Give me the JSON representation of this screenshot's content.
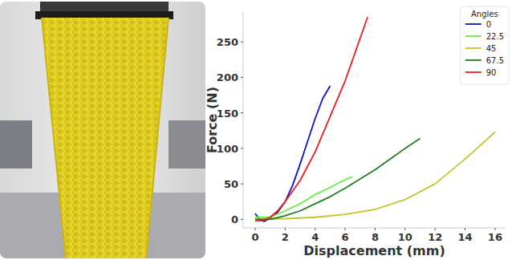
{
  "chart_data": {
    "type": "line",
    "x_label": "Displacement (mm)",
    "y_label": "Force (N)",
    "legend_title": "Angles",
    "legend": "upper right",
    "xlim": [
      -0.8,
      16.7
    ],
    "xticks": [
      0,
      2,
      4,
      6,
      8,
      10,
      12,
      14,
      16
    ],
    "ylim": [
      -12,
      292
    ],
    "yticks": [
      0,
      50,
      100,
      150,
      200,
      250
    ],
    "grid": false,
    "series": [
      {
        "name": "0",
        "color": "#1010d0",
        "x": [
          0,
          0.3,
          0.6,
          1,
          1.5,
          2,
          2.5,
          3,
          3.5,
          4,
          4.5,
          5
        ],
        "values": [
          8,
          0,
          -3,
          2,
          10,
          25,
          48,
          78,
          110,
          142,
          170,
          188
        ]
      },
      {
        "name": "22.5",
        "color": "#66f03c",
        "x": [
          0,
          1,
          2,
          3,
          4,
          5,
          6,
          6.5
        ],
        "values": [
          3,
          3,
          12,
          22,
          35,
          45,
          56,
          60
        ]
      },
      {
        "name": "45",
        "color": "#c4c431",
        "x": [
          0,
          2,
          4,
          6,
          8,
          10,
          12,
          14,
          16
        ],
        "values": [
          0,
          1,
          3,
          7,
          14,
          28,
          50,
          85,
          123
        ]
      },
      {
        "name": "67.5",
        "color": "#1e7d1e",
        "x": [
          0,
          1,
          2,
          3,
          4,
          5,
          6,
          7,
          8,
          9,
          10,
          11
        ],
        "values": [
          0,
          0,
          5,
          12,
          22,
          32,
          44,
          57,
          70,
          85,
          100,
          114
        ]
      },
      {
        "name": "90",
        "color": "#ee1c1c",
        "x": [
          0,
          0.5,
          1,
          1.5,
          2,
          3,
          4,
          5,
          6,
          7,
          7.5
        ],
        "values": [
          -2,
          -2,
          3,
          12,
          25,
          55,
          95,
          145,
          195,
          255,
          285
        ]
      }
    ]
  }
}
